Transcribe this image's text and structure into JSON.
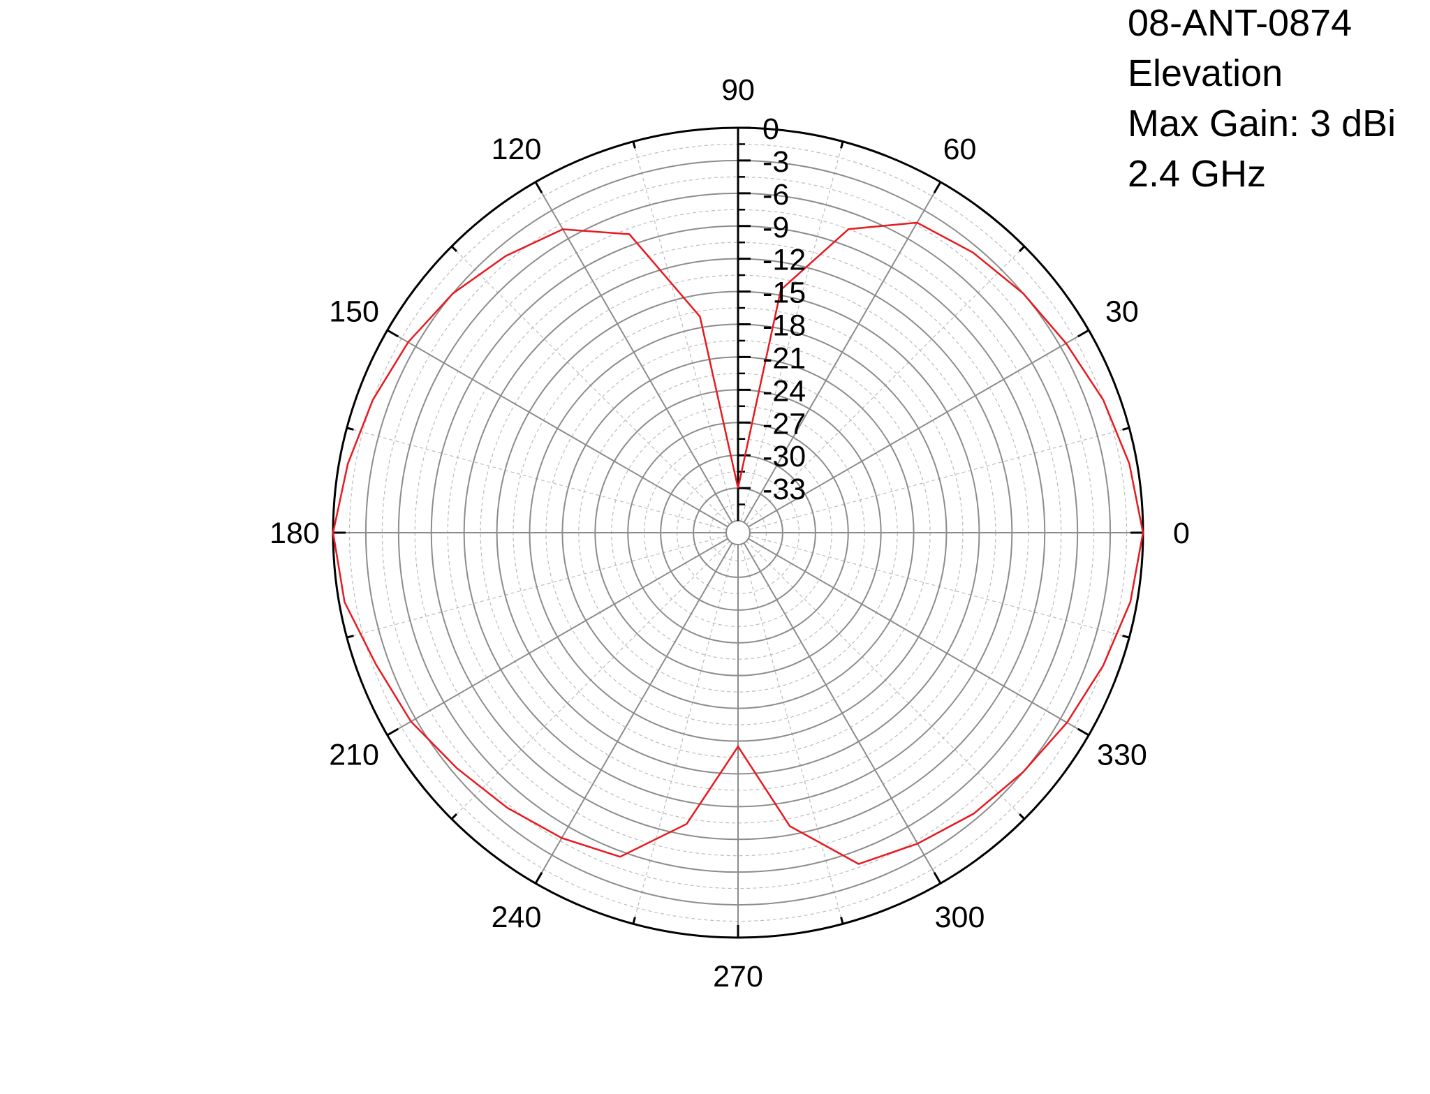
{
  "chart_data": {
    "type": "polar-line",
    "info_lines": [
      "08-ANT-0874",
      "Elevation",
      "Max Gain:  3 dBi",
      "2.4 GHz"
    ],
    "angle_ticks": [
      "0",
      "30",
      "60",
      "90",
      "120",
      "150",
      "180",
      "210",
      "240",
      "270",
      "300",
      "330"
    ],
    "angle_tick_values": [
      0,
      30,
      60,
      90,
      120,
      150,
      180,
      210,
      240,
      270,
      300,
      330
    ],
    "radial_ticks": [
      "0",
      "-3",
      "-6",
      "-9",
      "-12",
      "-15",
      "-18",
      "-21",
      "-24",
      "-27",
      "-30",
      "-33"
    ],
    "radial_tick_values": [
      0,
      -3,
      -6,
      -9,
      -12,
      -15,
      -18,
      -21,
      -24,
      -27,
      -30,
      -33
    ],
    "r_range": [
      -36,
      0
    ],
    "angle_unit": "degrees",
    "r_unit": "dB",
    "grid": true,
    "colors": {
      "series": "#e8191f",
      "major_grid": "#8c8c8c",
      "minor_grid": "#bcbcbc",
      "axis": "#000000"
    },
    "series": [
      {
        "angles": [
          0,
          10,
          20,
          30,
          40,
          50,
          60,
          70,
          80,
          90,
          100,
          110,
          120,
          130,
          140,
          150,
          160,
          170,
          180,
          190,
          200,
          210,
          220,
          230,
          240,
          250,
          260,
          270,
          280,
          290,
          300,
          310,
          320,
          330,
          340,
          350,
          360
        ],
        "values": [
          0,
          -0.7,
          -1.5,
          -2.4,
          -3.0,
          -3.6,
          -4.3,
          -7.5,
          -14.5,
          -33.0,
          -17.0,
          -8.0,
          -5.0,
          -4.0,
          -3.0,
          -2.2,
          -1.5,
          -0.8,
          0,
          -0.5,
          -1.8,
          -2.5,
          -3.5,
          -4.2,
          -4.8,
          -5.5,
          -10.0,
          -17.5,
          -9.8,
          -4.8,
          -4.2,
          -3.5,
          -3.0,
          -2.3,
          -1.5,
          -0.6,
          0
        ]
      }
    ]
  }
}
